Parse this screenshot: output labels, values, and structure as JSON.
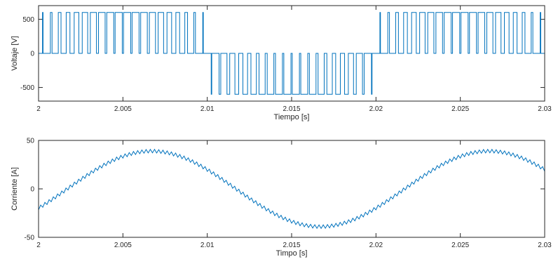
{
  "chart_data": [
    {
      "type": "line",
      "xlabel": "Tiempo [s]",
      "ylabel": "Voltaje [V]",
      "xlim": [
        2,
        2.03
      ],
      "ylim": [
        -700,
        700
      ],
      "xticks": [
        2,
        2.005,
        2.01,
        2.015,
        2.02,
        2.025,
        2.03
      ],
      "xtick_labels": [
        "2",
        "2.005",
        "2.01",
        "2.015",
        "2.02",
        "2.025",
        "2.03"
      ],
      "yticks": [
        -500,
        0,
        500
      ],
      "ytick_labels": [
        "-500",
        "0",
        "500"
      ],
      "grid": false,
      "color": "#0072BD",
      "series": [
        {
          "signal": "unipolar-pwm",
          "amplitude": 600,
          "carrier_frequency_hz": 2000,
          "fundamental_frequency_hz": 50,
          "modulation_index": 0.85,
          "x_start": 2,
          "x_end": 2.03
        }
      ]
    },
    {
      "type": "line",
      "xlabel": "Timpo [s]",
      "ylabel": "Corriente [A]",
      "xlim": [
        2,
        2.03
      ],
      "ylim": [
        -50,
        50
      ],
      "xticks": [
        2,
        2.005,
        2.01,
        2.015,
        2.02,
        2.025,
        2.03
      ],
      "xtick_labels": [
        "2",
        "2.005",
        "2.01",
        "2.015",
        "2.02",
        "2.025",
        "2.03"
      ],
      "yticks": [
        -50,
        0,
        50
      ],
      "ytick_labels": [
        "-50",
        "0",
        "50"
      ],
      "grid": false,
      "color": "#0072BD",
      "series": [
        {
          "signal": "sinusoid-with-ripple",
          "amplitude": 39,
          "frequency_hz": 50,
          "peak_time": 2.0067,
          "ripple_amplitude": 1.8,
          "ripple_frequency_hz": 4000,
          "x_start": 2,
          "x_end": 2.03
        }
      ]
    }
  ]
}
